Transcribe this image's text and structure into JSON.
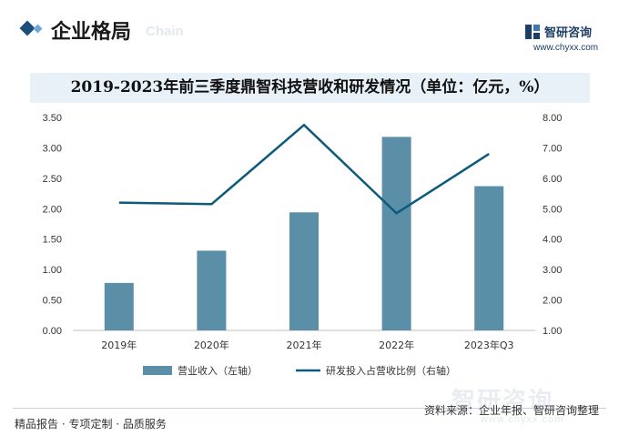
{
  "header": {
    "section_title": "企业格局",
    "section_sub": "Chain",
    "logo_name": "智研咨询",
    "logo_url": "www.chyxx.com"
  },
  "colors": {
    "bar": "#5b8fa8",
    "line": "#0d5a7a",
    "title_band": "#e8f1f7"
  },
  "chart_data": {
    "type": "bar+line",
    "title": "2019-2023年前三季度鼎智科技营收和研发情况（单位：亿元，%）",
    "categories": [
      "2019年",
      "2020年",
      "2021年",
      "2022年",
      "2023年Q3"
    ],
    "series": [
      {
        "name": "营业收入（左轴）",
        "type": "bar",
        "axis": "left",
        "values": [
          0.78,
          1.31,
          1.94,
          3.18,
          2.37
        ]
      },
      {
        "name": "研发投入占营收比例（右轴）",
        "type": "line",
        "axis": "right",
        "values": [
          5.2,
          5.15,
          7.75,
          4.85,
          6.8
        ]
      }
    ],
    "y_left": {
      "min": 0,
      "max": 3.5,
      "step": 0.5,
      "ticks": [
        "0.00",
        "0.50",
        "1.00",
        "1.50",
        "2.00",
        "2.50",
        "3.00",
        "3.50"
      ]
    },
    "y_right": {
      "min": 1,
      "max": 8,
      "step": 1,
      "ticks": [
        "1.00",
        "2.00",
        "3.00",
        "4.00",
        "5.00",
        "6.00",
        "7.00",
        "8.00"
      ]
    },
    "grid": false,
    "legend_position": "bottom"
  },
  "footer": {
    "left_text": "精品报告 · 专项定制 · 品质服务",
    "source": "资料来源：企业年报、智研咨询整理"
  },
  "watermark": {
    "text": "智研咨询",
    "url": "www.chyxx.com"
  }
}
